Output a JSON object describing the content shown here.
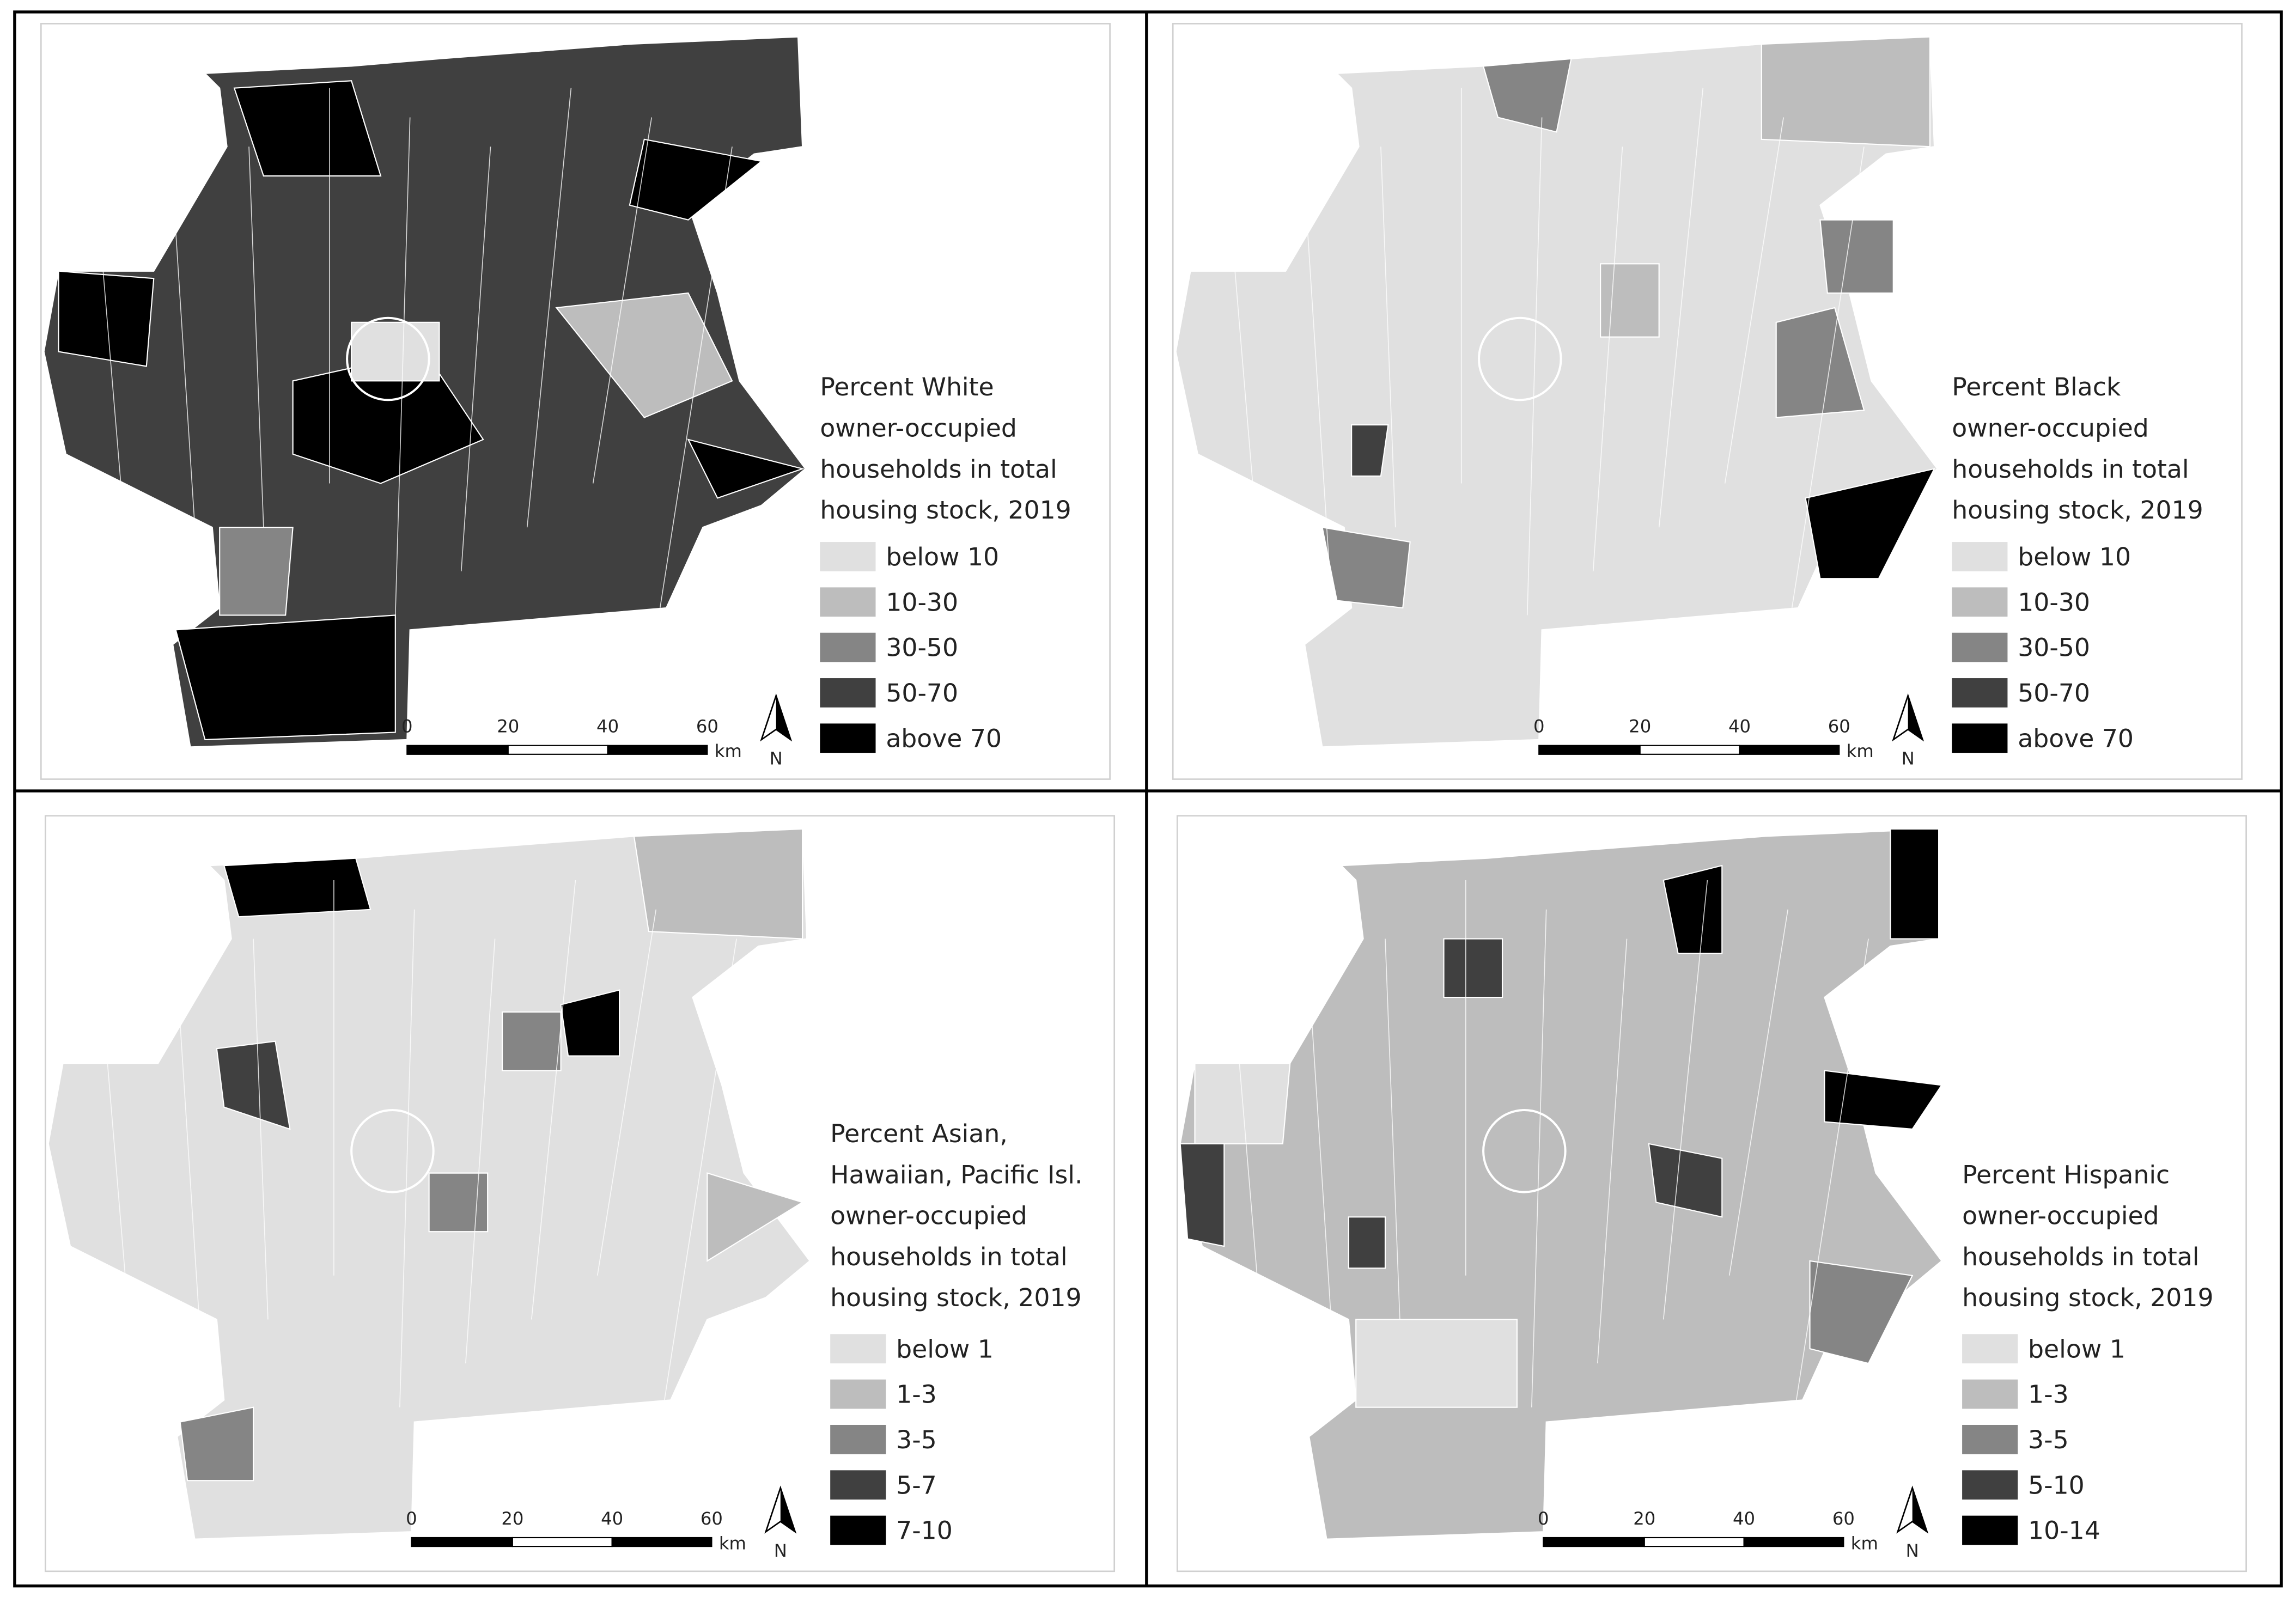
{
  "panels": [
    {
      "legend": {
        "title_lines": [
          "Percent White",
          "owner-occupied",
          "households in total",
          "housing stock, 2019"
        ],
        "items": [
          "below 10",
          "10-30",
          "30-50",
          "50-70",
          "above 70"
        ]
      },
      "scale_bar": {
        "ticks": [
          "0",
          "20",
          "40",
          "60"
        ],
        "unit": "km"
      },
      "north": "N"
    },
    {
      "legend": {
        "title_lines": [
          "Percent Black",
          "owner-occupied",
          "households in total",
          "housing stock, 2019"
        ],
        "items": [
          "below 10",
          "10-30",
          "30-50",
          "50-70",
          "above 70"
        ]
      },
      "scale_bar": {
        "ticks": [
          "0",
          "20",
          "40",
          "60"
        ],
        "unit": "km"
      },
      "north": "N"
    },
    {
      "legend": {
        "title_lines": [
          "Percent Asian,",
          "Hawaiian, Pacific Isl.",
          "owner-occupied",
          "households in total",
          "housing stock, 2019"
        ],
        "items": [
          "below 1",
          "1-3",
          "3-5",
          "5-7",
          "7-10"
        ]
      },
      "scale_bar": {
        "ticks": [
          "0",
          "20",
          "40",
          "60"
        ],
        "unit": "km"
      },
      "north": "N"
    },
    {
      "legend": {
        "title_lines": [
          "Percent Hispanic",
          "owner-occupied",
          "households in total",
          "housing stock, 2019"
        ],
        "items": [
          "below 1",
          "1-3",
          "3-5",
          "5-10",
          "10-14"
        ]
      },
      "scale_bar": {
        "ticks": [
          "0",
          "20",
          "40",
          "60"
        ],
        "unit": "km"
      },
      "north": "N"
    }
  ]
}
